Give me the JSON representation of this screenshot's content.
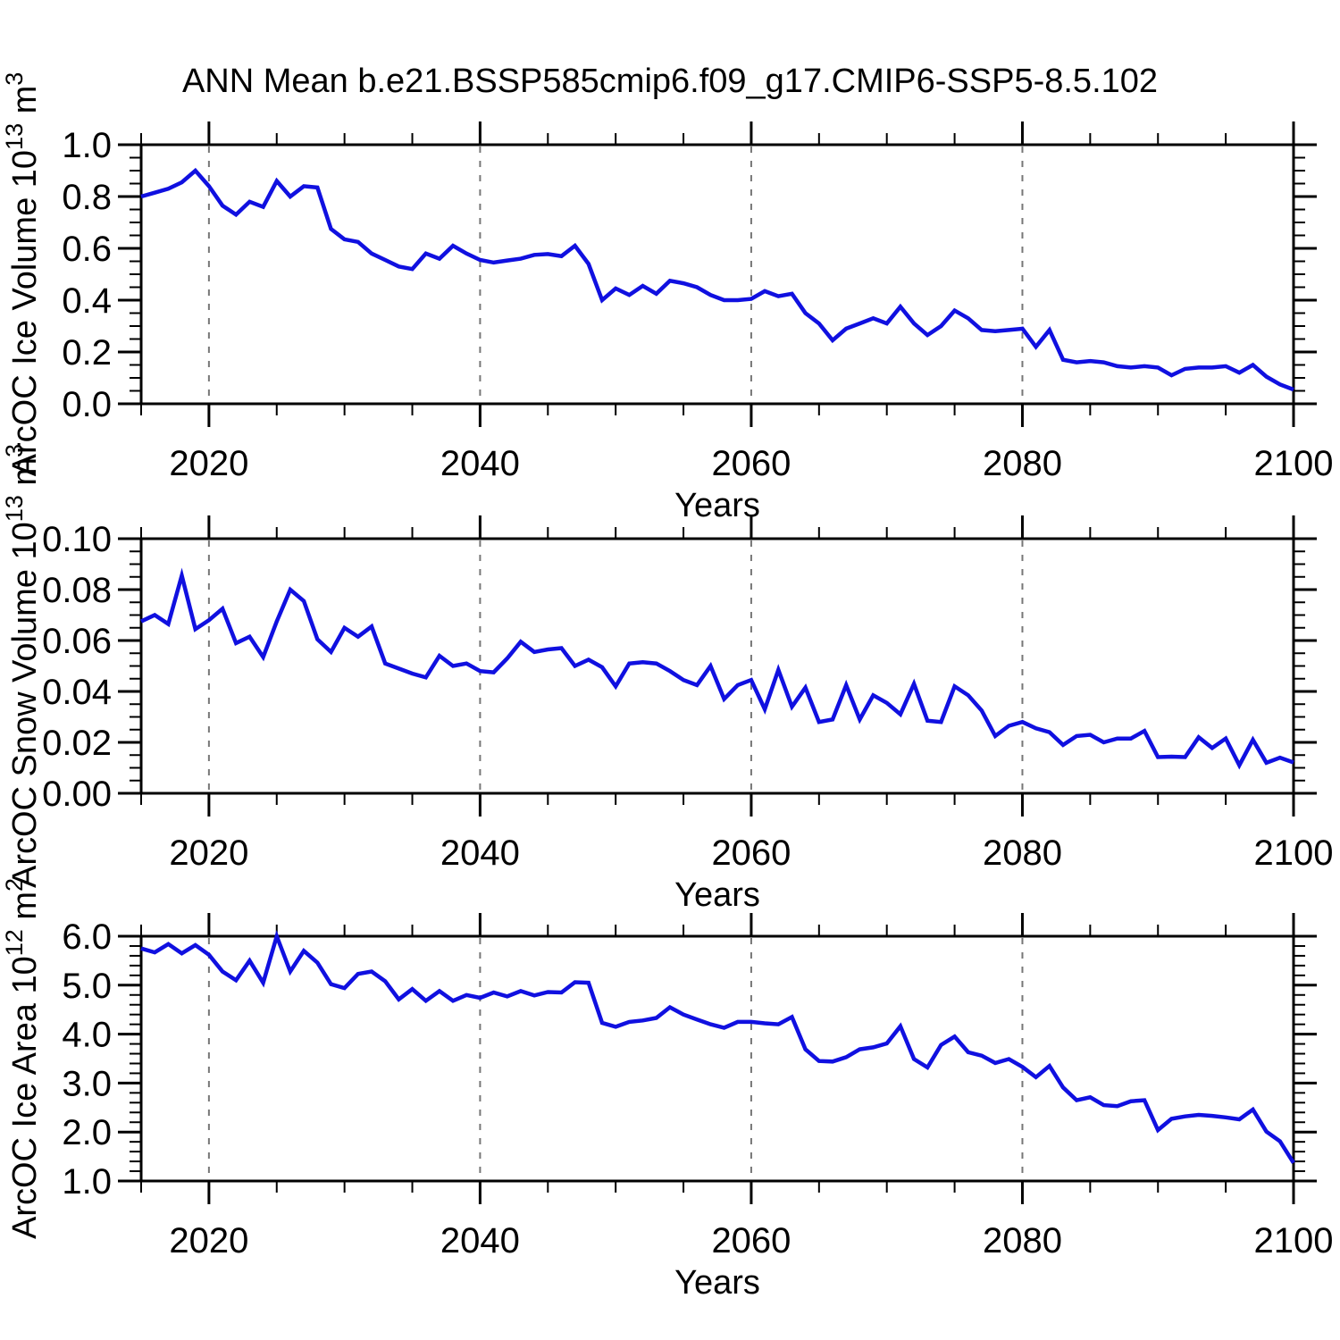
{
  "figure": {
    "title": "ANN Mean b.e21.BSSP585cmip6.f09_g17.CMIP6-SSP5-8.5.102",
    "background": "#ffffff",
    "line_color": "#1010E0",
    "grid_color": "#777777",
    "frame_color": "#000000"
  },
  "chart_data": {
    "type": "line",
    "layout": "3 stacked panels, shared annual x axis",
    "shared_x": {
      "label": "Years",
      "range": [
        2015,
        2100
      ],
      "ticks": [
        2020,
        2040,
        2060,
        2080,
        2100
      ],
      "tick_labels": [
        "2020",
        "2040",
        "2060",
        "2080",
        "2100"
      ],
      "minor_step": 5,
      "gridlines": [
        2020,
        2040,
        2060,
        2080
      ],
      "years": [
        2015,
        2016,
        2017,
        2018,
        2019,
        2020,
        2021,
        2022,
        2023,
        2024,
        2025,
        2026,
        2027,
        2028,
        2029,
        2030,
        2031,
        2032,
        2033,
        2034,
        2035,
        2036,
        2037,
        2038,
        2039,
        2040,
        2041,
        2042,
        2043,
        2044,
        2045,
        2046,
        2047,
        2048,
        2049,
        2050,
        2051,
        2052,
        2053,
        2054,
        2055,
        2056,
        2057,
        2058,
        2059,
        2060,
        2061,
        2062,
        2063,
        2064,
        2065,
        2066,
        2067,
        2068,
        2069,
        2070,
        2071,
        2072,
        2073,
        2074,
        2075,
        2076,
        2077,
        2078,
        2079,
        2080,
        2081,
        2082,
        2083,
        2084,
        2085,
        2086,
        2087,
        2088,
        2089,
        2090,
        2091,
        2092,
        2093,
        2094,
        2095,
        2096,
        2097,
        2098,
        2099,
        2100
      ]
    },
    "panels": [
      {
        "name": "ice-volume",
        "ylabel": "ArcOC Ice Volume 10^13 m^3",
        "ylabel_parts": [
          {
            "t": "ArcOC Ice Volume 10"
          },
          {
            "t": "13",
            "sup": true
          },
          {
            "t": " m"
          },
          {
            "t": "3",
            "sup": true
          }
        ],
        "ylim": [
          0.0,
          1.0
        ],
        "yticks": [
          0.0,
          0.2,
          0.4,
          0.6,
          0.8,
          1.0
        ],
        "ytick_labels": [
          "0.0",
          "0.2",
          "0.4",
          "0.6",
          "0.8",
          "1.0"
        ],
        "yminor_step": 0.05,
        "values": [
          0.8,
          0.815,
          0.83,
          0.855,
          0.9,
          0.84,
          0.765,
          0.73,
          0.78,
          0.76,
          0.86,
          0.8,
          0.84,
          0.835,
          0.675,
          0.635,
          0.625,
          0.58,
          0.555,
          0.53,
          0.52,
          0.58,
          0.56,
          0.61,
          0.58,
          0.555,
          0.545,
          0.553,
          0.56,
          0.575,
          0.578,
          0.57,
          0.61,
          0.54,
          0.4,
          0.445,
          0.42,
          0.455,
          0.425,
          0.475,
          0.465,
          0.45,
          0.42,
          0.4,
          0.4,
          0.405,
          0.435,
          0.415,
          0.425,
          0.35,
          0.31,
          0.245,
          0.29,
          0.31,
          0.33,
          0.31,
          0.375,
          0.31,
          0.265,
          0.3,
          0.36,
          0.33,
          0.285,
          0.28,
          0.285,
          0.29,
          0.22,
          0.285,
          0.17,
          0.16,
          0.165,
          0.16,
          0.145,
          0.14,
          0.145,
          0.14,
          0.11,
          0.135,
          0.14,
          0.14,
          0.145,
          0.12,
          0.15,
          0.105,
          0.075,
          0.055
        ]
      },
      {
        "name": "snow-volume",
        "ylabel": "ArcOC Snow Volume 10^13 m^3",
        "ylabel_parts": [
          {
            "t": "ArcOC Snow Volume 10"
          },
          {
            "t": "13",
            "sup": true
          },
          {
            "t": " m"
          },
          {
            "t": "3",
            "sup": true
          }
        ],
        "ylim": [
          0.0,
          0.1
        ],
        "yticks": [
          0.0,
          0.02,
          0.04,
          0.06,
          0.08,
          0.1
        ],
        "ytick_labels": [
          "0.00",
          "0.02",
          "0.04",
          "0.06",
          "0.08",
          "0.10"
        ],
        "yminor_step": 0.005,
        "values": [
          0.0675,
          0.07,
          0.0665,
          0.0855,
          0.0645,
          0.068,
          0.0725,
          0.059,
          0.0615,
          0.0535,
          0.0675,
          0.08,
          0.0755,
          0.0605,
          0.0555,
          0.065,
          0.0615,
          0.0655,
          0.051,
          0.049,
          0.047,
          0.0455,
          0.054,
          0.05,
          0.051,
          0.048,
          0.0475,
          0.053,
          0.0595,
          0.0555,
          0.0565,
          0.057,
          0.05,
          0.0525,
          0.0495,
          0.042,
          0.051,
          0.0515,
          0.051,
          0.048,
          0.0445,
          0.0425,
          0.05,
          0.037,
          0.0425,
          0.0445,
          0.033,
          0.0485,
          0.034,
          0.0415,
          0.028,
          0.029,
          0.0425,
          0.029,
          0.0385,
          0.0355,
          0.031,
          0.043,
          0.0285,
          0.028,
          0.042,
          0.0385,
          0.0325,
          0.0225,
          0.0265,
          0.028,
          0.0255,
          0.024,
          0.019,
          0.0225,
          0.023,
          0.02,
          0.0215,
          0.0215,
          0.0245,
          0.0142,
          0.0144,
          0.0142,
          0.022,
          0.0178,
          0.0215,
          0.011,
          0.021,
          0.012,
          0.014,
          0.0121
        ]
      },
      {
        "name": "ice-area",
        "ylabel": "ArcOC Ice Area 10^12 m^2",
        "ylabel_parts": [
          {
            "t": "ArcOC Ice Area 10"
          },
          {
            "t": "12",
            "sup": true
          },
          {
            "t": " m"
          },
          {
            "t": "2",
            "sup": true
          }
        ],
        "ylim": [
          1.0,
          6.0
        ],
        "yticks": [
          1.0,
          2.0,
          3.0,
          4.0,
          5.0,
          6.0
        ],
        "ytick_labels": [
          "1.0",
          "2.0",
          "3.0",
          "4.0",
          "5.0",
          "6.0"
        ],
        "yminor_step": 0.2,
        "values": [
          5.75,
          5.67,
          5.84,
          5.65,
          5.82,
          5.62,
          5.28,
          5.1,
          5.5,
          5.05,
          6.0,
          5.28,
          5.7,
          5.46,
          5.02,
          4.94,
          5.23,
          5.28,
          5.08,
          4.71,
          4.92,
          4.68,
          4.88,
          4.68,
          4.8,
          4.74,
          4.85,
          4.77,
          4.88,
          4.79,
          4.86,
          4.85,
          5.06,
          5.05,
          4.23,
          4.15,
          4.25,
          4.28,
          4.33,
          4.55,
          4.4,
          4.3,
          4.2,
          4.13,
          4.25,
          4.25,
          4.22,
          4.2,
          4.35,
          3.69,
          3.45,
          3.44,
          3.53,
          3.69,
          3.73,
          3.81,
          4.16,
          3.49,
          3.32,
          3.78,
          3.95,
          3.63,
          3.56,
          3.41,
          3.49,
          3.33,
          3.12,
          3.35,
          2.91,
          2.65,
          2.71,
          2.55,
          2.53,
          2.63,
          2.65,
          2.04,
          2.27,
          2.32,
          2.35,
          2.33,
          2.3,
          2.26,
          2.46,
          2.01,
          1.81,
          1.37
        ]
      }
    ]
  }
}
